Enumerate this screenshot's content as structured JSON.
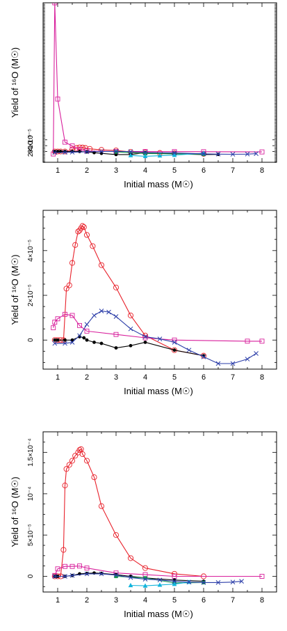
{
  "figure": {
    "panels": [
      {
        "ylabel": "Yield of ¹⁶O (M☉)",
        "xlabel": "Initial mass (M☉)"
      },
      {
        "ylabel": "Yield of ¹⁶O (M☉)",
        "xlabel": "Initial mass (M☉)"
      },
      {
        "ylabel": "Yield of ¹⁶O (M☉)",
        "xlabel": "Initial mass (M☉)"
      }
    ]
  },
  "chart_data": [
    {
      "type": "line",
      "title": "",
      "xlabel": "Initial mass (M☉)",
      "ylabel": "Yield of ¹⁶O (M☉)",
      "xlim": [
        0.5,
        8.5
      ],
      "ylim": [
        -3.7e-05,
        0.00051
      ],
      "x_ticks": [
        "1",
        "2",
        "3",
        "4",
        "5",
        "6",
        "7",
        "8"
      ],
      "y_ticks": [
        {
          "value": 0,
          "label": "0"
        },
        {
          "value": 2e-05,
          "label": "2×10⁻⁵"
        },
        {
          "value": 4e-05,
          "label": "4×10⁻⁵"
        }
      ],
      "colors": {
        "red": "#e8202a",
        "magenta": "#d81f9c",
        "black": "#000000",
        "green": "#1a9a4a",
        "cyan": "#12b4dc",
        "blue": "#2a3ca8"
      },
      "series": [
        {
          "color": "red",
          "marker": "circle",
          "x": [
            0.9,
            1.0,
            1.1,
            1.25,
            1.5,
            1.65,
            1.75,
            1.85,
            1.95,
            2.1,
            2.5,
            3.0,
            3.5,
            4.0,
            4.5,
            5.0,
            6.0
          ],
          "y": [
            0,
            0,
            0,
            0,
            7e-06,
            1.2e-05,
            1.4e-05,
            1.35e-05,
            1.2e-05,
            9e-06,
            5.5e-06,
            3.5e-06,
            -1.5e-06,
            -4e-06,
            -5e-06,
            -6.5e-06,
            -8e-06
          ]
        },
        {
          "color": "magenta",
          "marker": "square",
          "x": [
            0.85,
            0.9,
            1.0,
            1.25,
            1.5,
            1.75,
            2.0,
            3.0,
            4.0,
            5.0,
            6.0,
            8.0
          ],
          "y": [
            -8.5e-06,
            0.00051,
            0.00018,
            3.2e-05,
            1.9e-05,
            7e-06,
            2e-06,
            0,
            0,
            -5e-07,
            -8e-07,
            -1.5e-06
          ]
        },
        {
          "color": "black",
          "marker": "dot",
          "x": [
            0.9,
            1.0,
            1.1,
            1.25,
            1.5,
            1.75,
            2.0,
            2.25,
            2.5,
            3.0,
            3.5,
            4.0,
            5.0,
            6.0,
            6.5
          ],
          "y": [
            0,
            0,
            0,
            0,
            0,
            0,
            -1.5e-06,
            -4e-06,
            -6.5e-06,
            -1.05e-05,
            -1.05e-05,
            -4e-06,
            -8e-06,
            -1.05e-05,
            -1e-05
          ]
        },
        {
          "color": "green",
          "marker": "square-filled",
          "x": [
            3.0,
            4.0,
            5.0,
            6.0
          ],
          "y": [
            -1.5e-06,
            -7e-06,
            -8e-06,
            -9.5e-06
          ]
        },
        {
          "color": "cyan",
          "marker": "triangle",
          "x": [
            3.5,
            4.0,
            4.5,
            5.0,
            6.0
          ],
          "y": [
            -1.35e-05,
            -1.65e-05,
            -1.45e-05,
            -1.25e-05,
            -6e-06
          ]
        },
        {
          "color": "blue",
          "marker": "cross",
          "x": [
            0.9,
            1.25,
            1.5,
            2.0,
            2.5,
            3.0,
            3.5,
            4.0,
            5.0,
            6.0,
            6.5,
            7.0,
            7.5,
            7.8
          ],
          "y": [
            -3.5e-06,
            -3e-06,
            -2.5e-06,
            -1e-06,
            0,
            5e-07,
            -5e-07,
            -3.5e-06,
            -5e-06,
            -8e-06,
            -9e-06,
            -9.5e-06,
            -9e-06,
            -7.5e-06
          ]
        }
      ]
    },
    {
      "type": "line",
      "title": "",
      "xlabel": "Initial mass (M☉)",
      "ylabel": "Yield of ¹⁶O (M☉)",
      "xlim": [
        0.5,
        8.5
      ],
      "ylim": [
        -1.3e-05,
        5.8e-05
      ],
      "x_ticks": [
        "1",
        "2",
        "3",
        "4",
        "5",
        "6",
        "7",
        "8"
      ],
      "y_ticks": [
        {
          "value": 0,
          "label": "0"
        },
        {
          "value": 2e-05,
          "label": "2×10⁻⁵"
        },
        {
          "value": 4e-05,
          "label": "4×10⁻⁵"
        }
      ],
      "colors": {
        "red": "#e8202a",
        "magenta": "#d81f9c",
        "black": "#000000",
        "blue": "#2a3ca8"
      },
      "series": [
        {
          "color": "red",
          "marker": "circle",
          "x": [
            0.9,
            1.0,
            1.1,
            1.2,
            1.3,
            1.4,
            1.5,
            1.6,
            1.7,
            1.75,
            1.8,
            1.85,
            1.9,
            2.0,
            2.2,
            2.5,
            3.0,
            3.5,
            4.0,
            5.0,
            6.0
          ],
          "y": [
            0,
            0,
            0,
            0,
            2.3e-05,
            2.45e-05,
            3.45e-05,
            4.25e-05,
            4.85e-05,
            4.9e-05,
            5e-05,
            5.1e-05,
            5.05e-05,
            4.7e-05,
            4.2e-05,
            3.35e-05,
            2.35e-05,
            1.1e-05,
            2e-06,
            -4.5e-06,
            -7e-06
          ]
        },
        {
          "color": "magenta",
          "marker": "square",
          "x": [
            0.85,
            0.9,
            1.0,
            1.25,
            1.5,
            1.75,
            2.0,
            3.0,
            4.0,
            5.0,
            7.5,
            8.0
          ],
          "y": [
            5.5e-06,
            8e-06,
            9.5e-06,
            1.15e-05,
            1.1e-05,
            6.5e-06,
            4e-06,
            2.5e-06,
            1e-06,
            0,
            -5e-07,
            -5e-07
          ]
        },
        {
          "color": "black",
          "marker": "dot",
          "x": [
            0.9,
            1.0,
            1.25,
            1.5,
            1.75,
            1.9,
            2.0,
            2.25,
            2.5,
            3.0,
            3.5,
            4.0,
            5.0,
            6.0
          ],
          "y": [
            0,
            0,
            0,
            0,
            1.5e-06,
            1e-06,
            0,
            -1e-06,
            -1.5e-06,
            -3.5e-06,
            -2.5e-06,
            -1e-06,
            -4.5e-06,
            -7e-06
          ]
        },
        {
          "color": "blue",
          "marker": "cross",
          "x": [
            0.9,
            1.25,
            1.5,
            1.75,
            2.0,
            2.25,
            2.5,
            2.75,
            3.0,
            3.5,
            4.0,
            4.5,
            5.0,
            5.5,
            6.0,
            6.5,
            7.0,
            7.5,
            7.8
          ],
          "y": [
            -1.5e-06,
            -1.5e-06,
            -1e-06,
            2e-06,
            7e-06,
            1.1e-05,
            1.3e-05,
            1.25e-05,
            1.05e-05,
            5e-06,
            1.5e-06,
            5e-07,
            -1e-06,
            -4.5e-06,
            -7.5e-06,
            -1.05e-05,
            -1.05e-05,
            -8.5e-06,
            -6e-06
          ]
        }
      ]
    },
    {
      "type": "line",
      "title": "",
      "xlabel": "Initial mass (M☉)",
      "ylabel": "Yield of ¹⁶O (M☉)",
      "xlim": [
        0.5,
        8.5
      ],
      "ylim": [
        -1.9e-05,
        0.000175
      ],
      "x_ticks": [
        "1",
        "2",
        "3",
        "4",
        "5",
        "6",
        "7",
        "8"
      ],
      "y_ticks": [
        {
          "value": 0,
          "label": "0"
        },
        {
          "value": 5e-05,
          "label": "5×10⁻⁵"
        },
        {
          "value": 0.0001,
          "label": "10⁻⁴"
        },
        {
          "value": 0.00015,
          "label": "1.5×10⁻⁴"
        }
      ],
      "colors": {
        "red": "#e8202a",
        "magenta": "#d81f9c",
        "black": "#000000",
        "green": "#1a9a4a",
        "cyan": "#12b4dc",
        "blue": "#2a3ca8"
      },
      "series": [
        {
          "color": "red",
          "marker": "circle",
          "x": [
            0.9,
            1.0,
            1.1,
            1.2,
            1.25,
            1.3,
            1.4,
            1.5,
            1.6,
            1.7,
            1.75,
            1.8,
            1.85,
            2.0,
            2.25,
            2.5,
            3.0,
            3.5,
            4.0,
            5.0,
            6.0
          ],
          "y": [
            0,
            0,
            0,
            3.2e-05,
            0.00011,
            0.00013,
            0.000135,
            0.00014,
            0.000146,
            0.00015,
            0.000153,
            0.000154,
            0.000148,
            0.00014,
            0.00012,
            8.5e-05,
            5e-05,
            2.2e-05,
            1e-05,
            3e-06,
            0
          ]
        },
        {
          "color": "magenta",
          "marker": "square",
          "x": [
            0.9,
            1.0,
            1.25,
            1.5,
            1.75,
            2.0,
            3.0,
            4.0,
            5.0,
            8.0
          ],
          "y": [
            1e-06,
            9e-06,
            1.2e-05,
            1.2e-05,
            1.25e-05,
            1e-05,
            4e-06,
            2e-06,
            0,
            0
          ]
        },
        {
          "color": "black",
          "marker": "dot",
          "x": [
            0.9,
            1.0,
            1.25,
            1.5,
            1.75,
            2.0,
            2.25,
            2.5,
            3.0,
            3.5,
            4.0,
            5.0,
            6.0
          ],
          "y": [
            0,
            0,
            0,
            1e-06,
            3e-06,
            3.5e-06,
            4e-06,
            3.5e-06,
            2e-06,
            0,
            -2e-06,
            -4.5e-06,
            -6e-06
          ]
        },
        {
          "color": "green",
          "marker": "square-filled",
          "x": [
            3.0,
            4.0,
            5.0,
            6.0
          ],
          "y": [
            0,
            -2e-06,
            -8e-06,
            -7.5e-06
          ]
        },
        {
          "color": "cyan",
          "marker": "triangle",
          "x": [
            3.5,
            4.0,
            4.5,
            5.0,
            5.5
          ],
          "y": [
            -1.1e-05,
            -1.15e-05,
            -1.05e-05,
            -9.5e-06,
            -7e-06
          ]
        },
        {
          "color": "blue",
          "marker": "cross",
          "x": [
            0.9,
            1.25,
            1.5,
            2.0,
            2.5,
            3.0,
            3.5,
            4.0,
            4.5,
            5.0,
            5.5,
            6.0,
            6.5,
            7.0,
            7.3
          ],
          "y": [
            0,
            0,
            1e-06,
            3e-06,
            3e-06,
            1.5e-06,
            -1.5e-06,
            -3.5e-06,
            -4.5e-06,
            -6e-06,
            -7e-06,
            -7.5e-06,
            -7.5e-06,
            -7e-06,
            -6e-06
          ]
        }
      ]
    }
  ]
}
